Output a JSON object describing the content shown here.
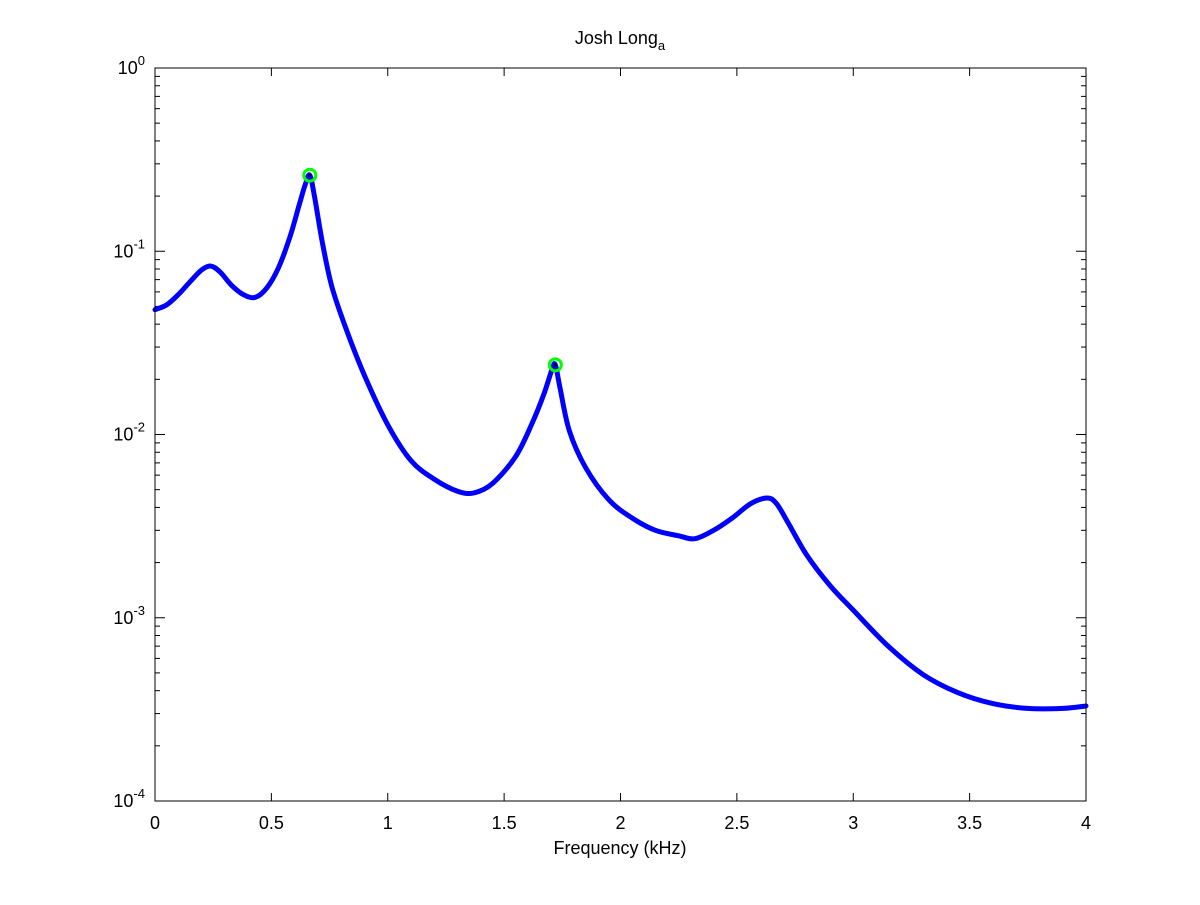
{
  "chart_data": {
    "type": "line",
    "title": "Josh Long",
    "title_subscript": "a",
    "xlabel": "Frequency (kHz)",
    "ylabel": "",
    "xlim": [
      0,
      4
    ],
    "ylim": [
      0.0001,
      1
    ],
    "yscale": "log",
    "grid": false,
    "x_ticks": [
      {
        "value": 0,
        "label": "0"
      },
      {
        "value": 0.5,
        "label": "0.5"
      },
      {
        "value": 1,
        "label": "1"
      },
      {
        "value": 1.5,
        "label": "1.5"
      },
      {
        "value": 2,
        "label": "2"
      },
      {
        "value": 2.5,
        "label": "2.5"
      },
      {
        "value": 3,
        "label": "3"
      },
      {
        "value": 3.5,
        "label": "3.5"
      },
      {
        "value": 4,
        "label": "4"
      }
    ],
    "y_ticks": [
      {
        "value": 0.0001,
        "base": "10",
        "exp": "-4"
      },
      {
        "value": 0.001,
        "base": "10",
        "exp": "-3"
      },
      {
        "value": 0.01,
        "base": "10",
        "exp": "-2"
      },
      {
        "value": 0.1,
        "base": "10",
        "exp": "-1"
      },
      {
        "value": 1,
        "base": "10",
        "exp": "0"
      }
    ],
    "series": [
      {
        "color": "#0000ff",
        "x": [
          0,
          0.05,
          0.1,
          0.15,
          0.2,
          0.24,
          0.28,
          0.33,
          0.38,
          0.43,
          0.48,
          0.53,
          0.58,
          0.62,
          0.645,
          0.665,
          0.685,
          0.72,
          0.76,
          0.82,
          0.9,
          1.0,
          1.1,
          1.2,
          1.3,
          1.37,
          1.45,
          1.55,
          1.62,
          1.67,
          1.705,
          1.72,
          1.74,
          1.78,
          1.85,
          1.95,
          2.05,
          2.15,
          2.25,
          2.32,
          2.4,
          2.48,
          2.56,
          2.63,
          2.67,
          2.72,
          2.8,
          2.9,
          3.0,
          3.15,
          3.3,
          3.45,
          3.6,
          3.75,
          3.9,
          4.0
        ],
        "y": [
          0.048,
          0.051,
          0.058,
          0.068,
          0.079,
          0.083,
          0.077,
          0.065,
          0.058,
          0.056,
          0.063,
          0.081,
          0.12,
          0.18,
          0.23,
          0.26,
          0.2,
          0.11,
          0.064,
          0.038,
          0.021,
          0.0113,
          0.0072,
          0.0057,
          0.0049,
          0.0048,
          0.0054,
          0.0076,
          0.0115,
          0.0165,
          0.0225,
          0.024,
          0.018,
          0.0105,
          0.0066,
          0.0044,
          0.0035,
          0.003,
          0.0028,
          0.0027,
          0.003,
          0.0035,
          0.0042,
          0.0045,
          0.0042,
          0.0033,
          0.0022,
          0.0015,
          0.0011,
          0.0007,
          0.00049,
          0.00039,
          0.00034,
          0.00032,
          0.00032,
          0.00033
        ]
      }
    ],
    "markers": [
      {
        "x": 0.665,
        "y": 0.26,
        "color": "#00ff00"
      },
      {
        "x": 1.72,
        "y": 0.024,
        "color": "#00ff00"
      }
    ]
  }
}
